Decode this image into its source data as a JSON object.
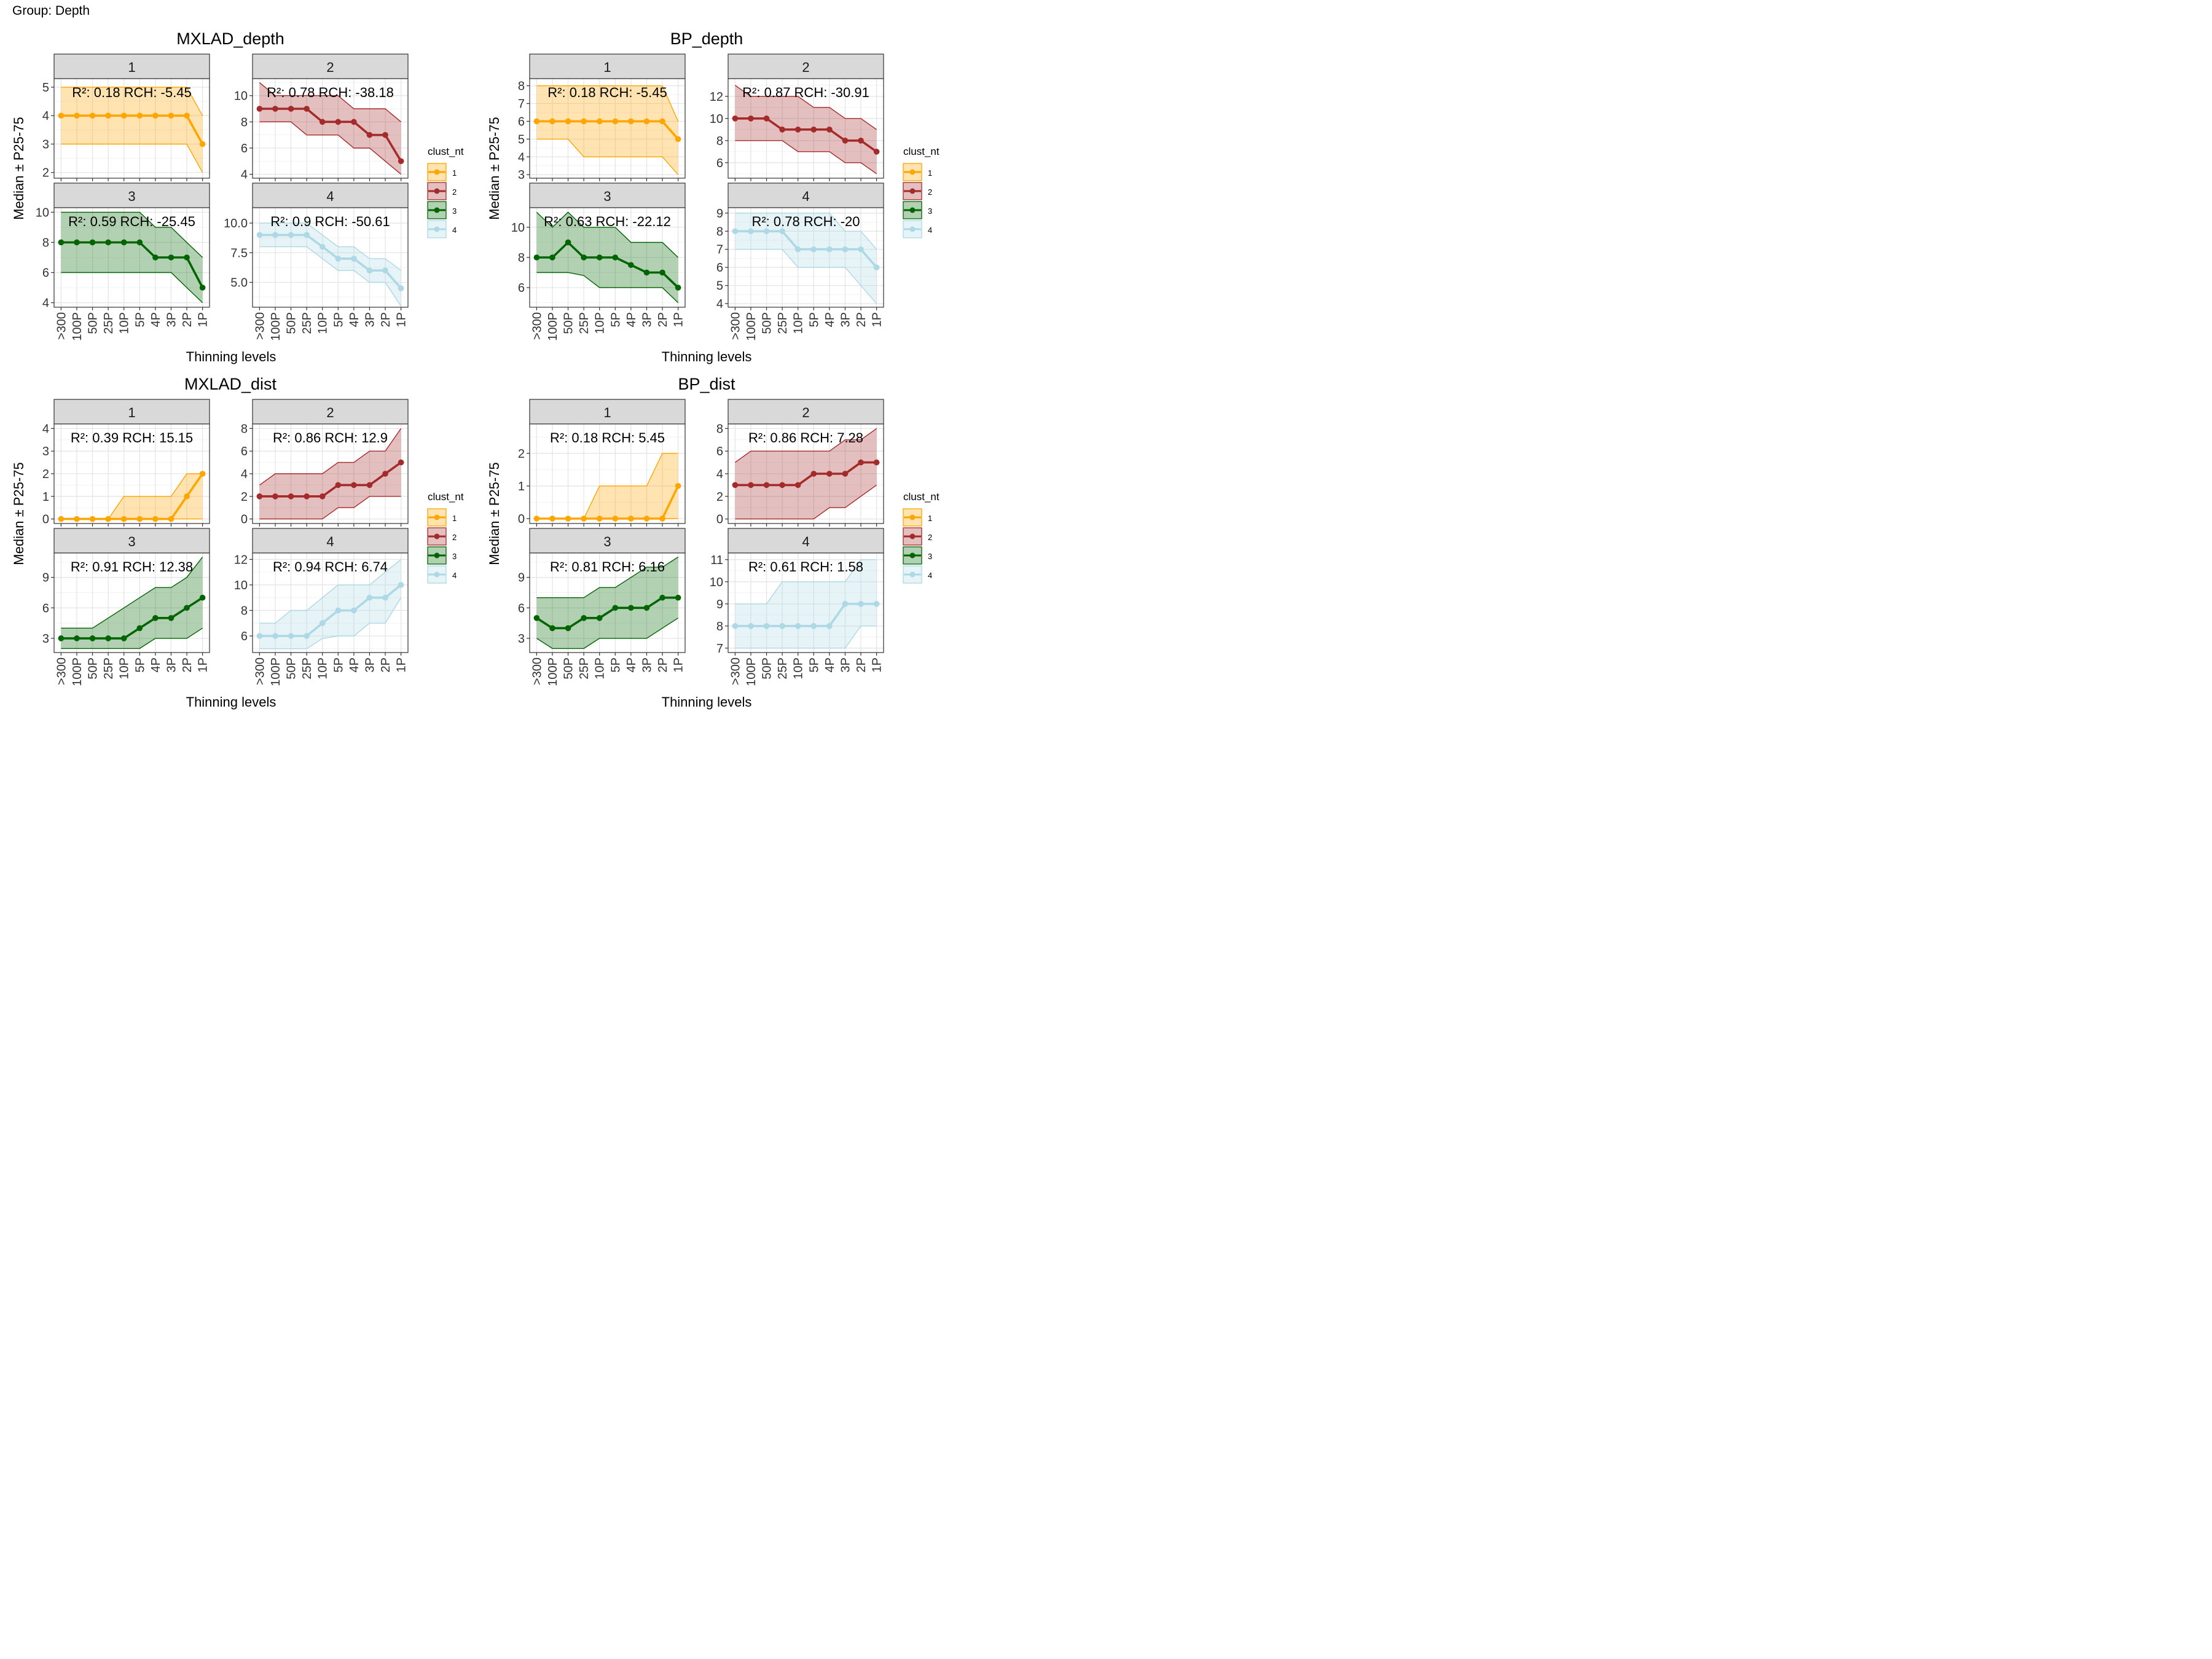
{
  "group_label": "Group: Depth",
  "x_levels": [
    ">300",
    "100P",
    "50P",
    "25P",
    "10P",
    "5P",
    "4P",
    "3P",
    "2P",
    "1P"
  ],
  "xlabel": "Thinning levels",
  "ylabel": "Median ± P25-75",
  "legend": {
    "title": "clust_nt",
    "labels": [
      "1",
      "2",
      "3",
      "4"
    ]
  },
  "colors": {
    "1": "#FFA500",
    "2": "#A52A2A",
    "3": "#006400",
    "4": "#ADD8E6"
  },
  "chart_data": [
    {
      "type": "line",
      "title": "MXLAD_depth",
      "facets": [
        {
          "label": "1",
          "annotation": "R²: 0.18 RCH: -5.45",
          "yticks": [
            2,
            3,
            4,
            5
          ],
          "ylim": [
            1.8,
            5.3
          ],
          "median": [
            4,
            4,
            4,
            4,
            4,
            4,
            4,
            4,
            4,
            3
          ],
          "p25": [
            3,
            3,
            3,
            3,
            3,
            3,
            3,
            3,
            3,
            2
          ],
          "p75": [
            5,
            5,
            5,
            5,
            5,
            5,
            5,
            5,
            5,
            4
          ]
        },
        {
          "label": "2",
          "annotation": "R²: 0.78 RCH: -38.18",
          "yticks": [
            4,
            6,
            8,
            10
          ],
          "ylim": [
            3.7,
            11.3
          ],
          "median": [
            9,
            9,
            9,
            9,
            8,
            8,
            8,
            7,
            7,
            5
          ],
          "p25": [
            8,
            8,
            8,
            7,
            7,
            7,
            6,
            6,
            5,
            4
          ],
          "p75": [
            11,
            10,
            10,
            10,
            10,
            10,
            9,
            9,
            9,
            8
          ]
        },
        {
          "label": "3",
          "annotation": "R²: 0.59 RCH: -25.45",
          "yticks": [
            4,
            6,
            8,
            10
          ],
          "ylim": [
            3.7,
            10.3
          ],
          "median": [
            8,
            8,
            8,
            8,
            8,
            8,
            7,
            7,
            7,
            5
          ],
          "p25": [
            6,
            6,
            6,
            6,
            6,
            6,
            6,
            6,
            5,
            4
          ],
          "p75": [
            10,
            10,
            10,
            10,
            10,
            10,
            9,
            9,
            8,
            7
          ]
        },
        {
          "label": "4",
          "annotation": "R²: 0.9 RCH: -50.61",
          "yticks": [
            5,
            7.5,
            10
          ],
          "yticklabels": [
            "5.0",
            "7.5",
            "10.0"
          ],
          "ylim": [
            2.9,
            11.3
          ],
          "median": [
            9,
            9,
            9,
            9,
            8,
            7,
            7,
            6,
            6,
            4.5
          ],
          "p25": [
            8,
            8,
            8,
            8,
            7,
            6,
            6,
            5,
            5,
            3
          ],
          "p75": [
            10,
            10,
            10,
            10,
            9,
            8,
            8,
            7,
            7,
            6
          ]
        }
      ]
    },
    {
      "type": "line",
      "title": "BP_depth",
      "facets": [
        {
          "label": "1",
          "annotation": "R²: 0.18 RCH: -5.45",
          "yticks": [
            3,
            4,
            5,
            6,
            7,
            8
          ],
          "ylim": [
            2.8,
            8.4
          ],
          "median": [
            6,
            6,
            6,
            6,
            6,
            6,
            6,
            6,
            6,
            5
          ],
          "p25": [
            5,
            5,
            5,
            4,
            4,
            4,
            4,
            4,
            4,
            3
          ],
          "p75": [
            8,
            8,
            8,
            8,
            8,
            8,
            8,
            8,
            8,
            6
          ]
        },
        {
          "label": "2",
          "annotation": "R²: 0.87 RCH: -30.91",
          "yticks": [
            6,
            8,
            10,
            12
          ],
          "ylim": [
            4.6,
            13.6
          ],
          "median": [
            10,
            10,
            10,
            9,
            9,
            9,
            9,
            8,
            8,
            7
          ],
          "p25": [
            8,
            8,
            8,
            8,
            7,
            7,
            7,
            6,
            6,
            5
          ],
          "p75": [
            13,
            12,
            12,
            12,
            12,
            11,
            11,
            10,
            10,
            9
          ]
        },
        {
          "label": "3",
          "annotation": "R²: 0.63 RCH: -22.12",
          "yticks": [
            6,
            8,
            10
          ],
          "ylim": [
            4.7,
            11.3
          ],
          "median": [
            8,
            8,
            9,
            8,
            8,
            8,
            7.5,
            7,
            7,
            6
          ],
          "p25": [
            7,
            7,
            7,
            6.8,
            6,
            6,
            6,
            6,
            6,
            5
          ],
          "p75": [
            11,
            10,
            11,
            10,
            10,
            10,
            9,
            9,
            9,
            8
          ]
        },
        {
          "label": "4",
          "annotation": "R²: 0.78 RCH: -20",
          "yticks": [
            4,
            5,
            6,
            7,
            8,
            9
          ],
          "ylim": [
            3.8,
            9.3
          ],
          "median": [
            8,
            8,
            8,
            8,
            7,
            7,
            7,
            7,
            7,
            6
          ],
          "p25": [
            7,
            7,
            7,
            7,
            6,
            6,
            6,
            6,
            5,
            4
          ],
          "p75": [
            9,
            9,
            9,
            9,
            9,
            9,
            9,
            8,
            8,
            7
          ]
        }
      ]
    },
    {
      "type": "line",
      "title": "MXLAD_dist",
      "facets": [
        {
          "label": "1",
          "annotation": "R²: 0.39 RCH: 15.15",
          "yticks": [
            0,
            1,
            2,
            3,
            4
          ],
          "ylim": [
            -0.2,
            4.2
          ],
          "median": [
            0,
            0,
            0,
            0,
            0,
            0,
            0,
            0,
            1,
            2
          ],
          "p25": [
            0,
            0,
            0,
            0,
            0,
            0,
            0,
            0,
            0,
            0
          ],
          "p75": [
            0,
            0,
            0,
            0,
            1,
            1,
            1,
            1,
            2,
            2
          ]
        },
        {
          "label": "2",
          "annotation": "R²: 0.86 RCH: 12.9",
          "yticks": [
            0,
            2,
            4,
            6,
            8
          ],
          "ylim": [
            -0.4,
            8.4
          ],
          "median": [
            2,
            2,
            2,
            2,
            2,
            3,
            3,
            3,
            4,
            5
          ],
          "p25": [
            0,
            0,
            0,
            0,
            0,
            1,
            1,
            2,
            2,
            2
          ],
          "p75": [
            3,
            4,
            4,
            4,
            4,
            5,
            5,
            6,
            6,
            8
          ]
        },
        {
          "label": "3",
          "annotation": "R²: 0.91 RCH: 12.38",
          "yticks": [
            3,
            6,
            9
          ],
          "ylim": [
            1.6,
            11.4
          ],
          "median": [
            3,
            3,
            3,
            3,
            3,
            4,
            5,
            5,
            6,
            7
          ],
          "p25": [
            2,
            2,
            2,
            2,
            2,
            2,
            3,
            3,
            3,
            4
          ],
          "p75": [
            4,
            4,
            4,
            5,
            6,
            7,
            8,
            8,
            9,
            11
          ]
        },
        {
          "label": "4",
          "annotation": "R²: 0.94 RCH: 6.74",
          "yticks": [
            6,
            8,
            10,
            12
          ],
          "ylim": [
            4.7,
            12.5
          ],
          "median": [
            6,
            6,
            6,
            6,
            7,
            8,
            8,
            9,
            9,
            10
          ],
          "p25": [
            5,
            5,
            5,
            5,
            5.8,
            6,
            6,
            7,
            7,
            9
          ],
          "p75": [
            7,
            7,
            8,
            8,
            9,
            10,
            10,
            10,
            11,
            12
          ]
        }
      ]
    },
    {
      "type": "line",
      "title": "BP_dist",
      "facets": [
        {
          "label": "1",
          "annotation": "R²: 0.18 RCH: 5.45",
          "yticks": [
            0,
            1,
            2
          ],
          "ylim": [
            -0.15,
            2.9
          ],
          "median": [
            0,
            0,
            0,
            0,
            0,
            0,
            0,
            0,
            0,
            1
          ],
          "p25": [
            0,
            0,
            0,
            0,
            0,
            0,
            0,
            0,
            0,
            0
          ],
          "p75": [
            0,
            0,
            0,
            0,
            1,
            1,
            1,
            1,
            2,
            2
          ]
        },
        {
          "label": "2",
          "annotation": "R²: 0.86 RCH: 7.28",
          "yticks": [
            0,
            2,
            4,
            6,
            8
          ],
          "ylim": [
            -0.4,
            8.4
          ],
          "median": [
            3,
            3,
            3,
            3,
            3,
            4,
            4,
            4,
            5,
            5
          ],
          "p25": [
            0,
            0,
            0,
            0,
            0,
            0,
            1,
            1,
            2,
            3
          ],
          "p75": [
            5,
            6,
            6,
            6,
            6,
            6,
            6,
            7,
            7,
            8
          ]
        },
        {
          "label": "3",
          "annotation": "R²: 0.81 RCH: 6.16",
          "yticks": [
            3,
            6,
            9
          ],
          "ylim": [
            1.6,
            11.4
          ],
          "median": [
            5,
            4,
            4,
            5,
            5,
            6,
            6,
            6,
            7,
            7
          ],
          "p25": [
            3,
            2,
            2,
            2,
            3,
            3,
            3,
            3,
            4,
            5
          ],
          "p75": [
            7,
            7,
            7,
            7,
            8,
            8,
            9,
            10,
            10,
            11
          ]
        },
        {
          "label": "4",
          "annotation": "R²: 0.61 RCH: 1.58",
          "yticks": [
            7,
            8,
            9,
            10,
            11
          ],
          "ylim": [
            6.8,
            11.3
          ],
          "median": [
            8,
            8,
            8,
            8,
            8,
            8,
            8,
            9,
            9,
            9
          ],
          "p25": [
            7,
            7,
            7,
            7,
            7,
            7,
            7,
            7,
            8,
            8
          ],
          "p75": [
            9,
            9,
            9,
            10,
            10,
            10,
            10,
            10,
            11,
            11
          ]
        }
      ]
    }
  ]
}
